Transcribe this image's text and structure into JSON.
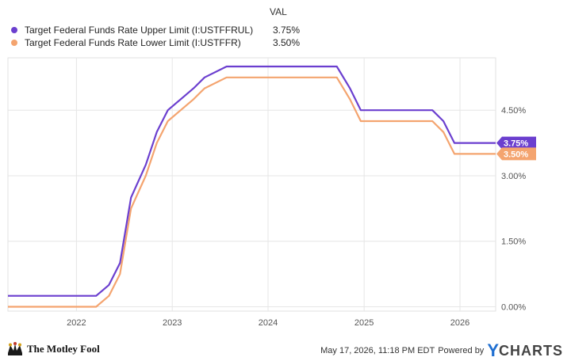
{
  "legend": {
    "header": "VAL",
    "entries": [
      {
        "name": "Target Federal Funds Rate Upper Limit (I:USTFFRUL)",
        "value": "3.75%",
        "color": "#6b3fcf"
      },
      {
        "name": "Target Federal Funds Rate Lower Limit (I:USTFFR)",
        "value": "3.50%",
        "color": "#f4a46f"
      }
    ]
  },
  "footer": {
    "brand": "The Motley Fool",
    "timestamp": "May 17, 2026, 11:18 PM EDT",
    "powered_by": "Powered by",
    "ycharts_y": "Y",
    "ycharts_rest": "CHARTS"
  },
  "chart_data": {
    "type": "line",
    "x_ticks": [
      "2022",
      "2023",
      "2024",
      "2025",
      "2026"
    ],
    "y_ticks": [
      "0.00%",
      "1.50%",
      "3.00%",
      "4.50%"
    ],
    "ylim": [
      -0.1,
      5.7
    ],
    "xlim": [
      "2021-04-15",
      "2026-05-17"
    ],
    "grid": true,
    "end_labels": [
      "3.75%",
      "3.50%"
    ],
    "series": [
      {
        "name": "Target Federal Funds Rate Upper Limit (I:USTFFRUL)",
        "color": "#6b3fcf",
        "x": [
          "2021-04-15",
          "2022-03-17",
          "2022-05-05",
          "2022-06-16",
          "2022-07-28",
          "2022-09-22",
          "2022-11-03",
          "2022-12-15",
          "2023-02-02",
          "2023-03-23",
          "2023-05-04",
          "2023-07-27",
          "2024-09-19",
          "2024-11-08",
          "2024-12-19",
          "2025-09-18",
          "2025-10-30",
          "2025-12-11",
          "2026-05-17"
        ],
        "y": [
          0.25,
          0.25,
          0.5,
          1.0,
          2.5,
          3.25,
          4.0,
          4.5,
          4.75,
          5.0,
          5.25,
          5.5,
          5.5,
          5.0,
          4.5,
          4.5,
          4.25,
          3.75,
          3.75
        ]
      },
      {
        "name": "Target Federal Funds Rate Lower Limit (I:USTFFR)",
        "color": "#f4a46f",
        "x": [
          "2021-04-15",
          "2022-03-17",
          "2022-05-05",
          "2022-06-16",
          "2022-07-28",
          "2022-09-22",
          "2022-11-03",
          "2022-12-15",
          "2023-02-02",
          "2023-03-23",
          "2023-05-04",
          "2023-07-27",
          "2024-09-19",
          "2024-11-08",
          "2024-12-19",
          "2025-09-18",
          "2025-10-30",
          "2025-12-11",
          "2026-05-17"
        ],
        "y": [
          0.0,
          0.0,
          0.25,
          0.75,
          2.25,
          3.0,
          3.75,
          4.25,
          4.5,
          4.75,
          5.0,
          5.25,
          5.25,
          4.75,
          4.25,
          4.25,
          4.0,
          3.5,
          3.5
        ]
      }
    ]
  }
}
